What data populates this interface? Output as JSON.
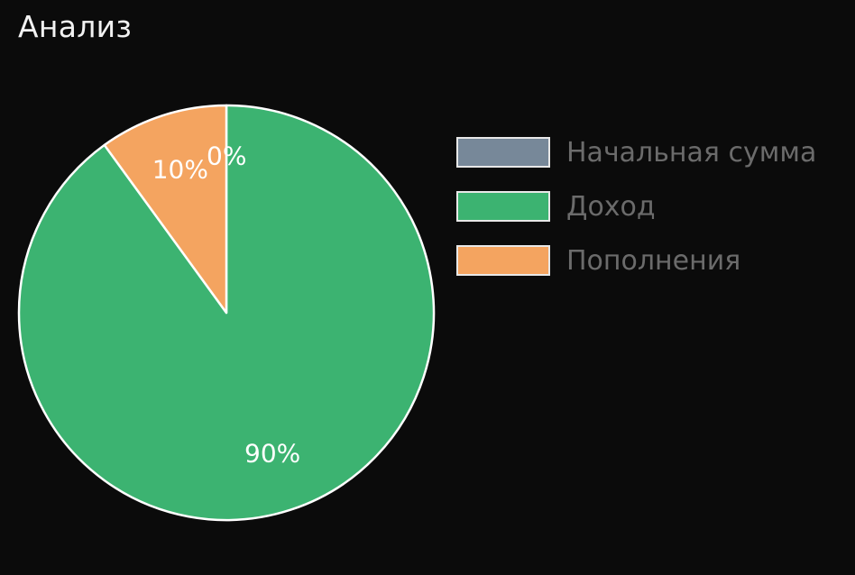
{
  "header": {
    "title": "Анализ"
  },
  "chart_data": {
    "type": "pie",
    "title": "Анализ",
    "categories": [
      "Начальная сумма",
      "Доход",
      "Пополнения"
    ],
    "values": [
      0,
      90,
      10
    ],
    "labels": [
      "0%",
      "90%",
      "10%"
    ],
    "colors": [
      "#778899",
      "#3cb371",
      "#f4a460"
    ],
    "start_angle_deg": 0,
    "direction": "clockwise",
    "slice_border_color": "#ffffff",
    "legend_placement": "right"
  }
}
